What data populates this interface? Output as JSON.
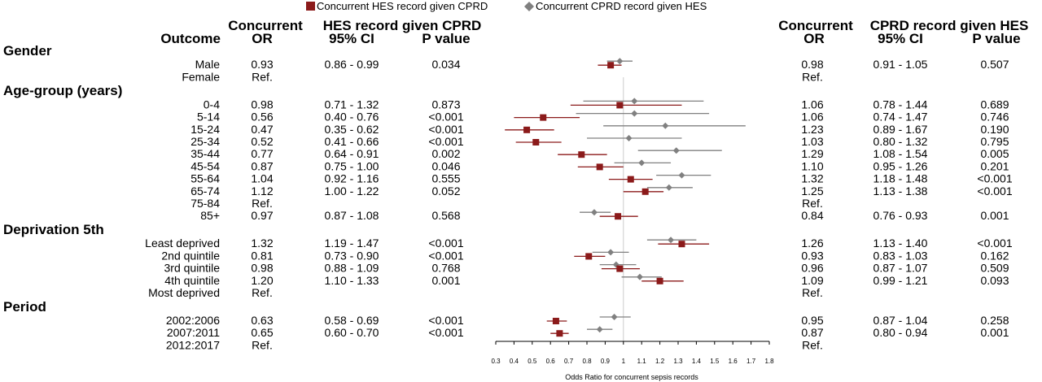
{
  "chart_data": {
    "type": "forest",
    "legend": [
      {
        "name": "Concurrent HES record given CPRD",
        "color": "#8b1a1a",
        "marker": "square"
      },
      {
        "name": "Concurrent CPRD record given HES",
        "color": "#808080",
        "marker": "diamond"
      }
    ],
    "header_left": {
      "group1": "Concurrent",
      "group2": "HES record given CPRD",
      "outcome": "Outcome",
      "or": "OR",
      "ci": "95% CI",
      "p": "P value"
    },
    "header_right": {
      "group1": "Concurrent",
      "group2": "CPRD record given HES",
      "or": "OR",
      "ci": "95% CI",
      "p": "P value"
    },
    "xaxis": {
      "label": "Odds Ratio for concurrent sepsis records",
      "min": 0.3,
      "max": 1.8,
      "reference_line": 1,
      "ticks": [
        0.3,
        0.4,
        0.5,
        0.6,
        0.7,
        0.8,
        0.9,
        1,
        1.1,
        1.2,
        1.3,
        1.4,
        1.5,
        1.6,
        1.7,
        1.8
      ],
      "tick_labels": [
        "0.3",
        "0.4",
        "0.5",
        "0.6",
        "0.7",
        "0.8",
        "0.9",
        "1",
        "1.1",
        "1.2",
        "1.3",
        "1.4",
        "1.5",
        "1.6",
        "1.7",
        "1.8"
      ]
    },
    "rows": [
      {
        "type": "section",
        "label": "Gender"
      },
      {
        "type": "row",
        "label": "Male",
        "hes": {
          "or": "0.93",
          "ci": "0.86 - 0.99",
          "p": "0.034",
          "est": 0.93,
          "lo": 0.86,
          "hi": 0.99
        },
        "cprd": {
          "or": "0.98",
          "ci": "0.91 - 1.05",
          "p": "0.507",
          "est": 0.98,
          "lo": 0.91,
          "hi": 1.05
        }
      },
      {
        "type": "row",
        "label": "Female",
        "hes": {
          "or": "Ref."
        },
        "cprd": {
          "or": "Ref."
        }
      },
      {
        "type": "section",
        "label": "Age-group (years)"
      },
      {
        "type": "row",
        "label": "0-4",
        "hes": {
          "or": "0.98",
          "ci": "0.71 - 1.32",
          "p": "0.873",
          "est": 0.98,
          "lo": 0.71,
          "hi": 1.32
        },
        "cprd": {
          "or": "1.06",
          "ci": "0.78 - 1.44",
          "p": "0.689",
          "est": 1.06,
          "lo": 0.78,
          "hi": 1.44
        }
      },
      {
        "type": "row",
        "label": "5-14",
        "hes": {
          "or": "0.56",
          "ci": "0.40 - 0.76",
          "p": "<0.001",
          "est": 0.56,
          "lo": 0.4,
          "hi": 0.76
        },
        "cprd": {
          "or": "1.06",
          "ci": "0.74 - 1.47",
          "p": "0.746",
          "est": 1.06,
          "lo": 0.74,
          "hi": 1.47
        }
      },
      {
        "type": "row",
        "label": "15-24",
        "hes": {
          "or": "0.47",
          "ci": "0.35 - 0.62",
          "p": "<0.001",
          "est": 0.47,
          "lo": 0.35,
          "hi": 0.62
        },
        "cprd": {
          "or": "1.23",
          "ci": "0.89 - 1.67",
          "p": "0.190",
          "est": 1.23,
          "lo": 0.89,
          "hi": 1.67
        }
      },
      {
        "type": "row",
        "label": "25-34",
        "hes": {
          "or": "0.52",
          "ci": "0.41 - 0.66",
          "p": "<0.001",
          "est": 0.52,
          "lo": 0.41,
          "hi": 0.66
        },
        "cprd": {
          "or": "1.03",
          "ci": "0.80 - 1.32",
          "p": "0.795",
          "est": 1.03,
          "lo": 0.8,
          "hi": 1.32
        }
      },
      {
        "type": "row",
        "label": "35-44",
        "hes": {
          "or": "0.77",
          "ci": "0.64 - 0.91",
          "p": "0.002",
          "est": 0.77,
          "lo": 0.64,
          "hi": 0.91
        },
        "cprd": {
          "or": "1.29",
          "ci": "1.08 - 1.54",
          "p": "0.005",
          "est": 1.29,
          "lo": 1.08,
          "hi": 1.54
        }
      },
      {
        "type": "row",
        "label": "45-54",
        "hes": {
          "or": "0.87",
          "ci": "0.75 - 1.00",
          "p": "0.046",
          "est": 0.87,
          "lo": 0.75,
          "hi": 1.0
        },
        "cprd": {
          "or": "1.10",
          "ci": "0.95 - 1.26",
          "p": "0.201",
          "est": 1.1,
          "lo": 0.95,
          "hi": 1.26
        }
      },
      {
        "type": "row",
        "label": "55-64",
        "hes": {
          "or": "1.04",
          "ci": "0.92 - 1.16",
          "p": "0.555",
          "est": 1.04,
          "lo": 0.92,
          "hi": 1.16
        },
        "cprd": {
          "or": "1.32",
          "ci": "1.18 - 1.48",
          "p": "<0.001",
          "est": 1.32,
          "lo": 1.18,
          "hi": 1.48
        }
      },
      {
        "type": "row",
        "label": "65-74",
        "hes": {
          "or": "1.12",
          "ci": "1.00 - 1.22",
          "p": "0.052",
          "est": 1.12,
          "lo": 1.0,
          "hi": 1.22
        },
        "cprd": {
          "or": "1.25",
          "ci": "1.13 - 1.38",
          "p": "<0.001",
          "est": 1.25,
          "lo": 1.13,
          "hi": 1.38
        }
      },
      {
        "type": "row",
        "label": "75-84",
        "hes": {
          "or": "Ref."
        },
        "cprd": {
          "or": "Ref."
        }
      },
      {
        "type": "row",
        "label": "85+",
        "hes": {
          "or": "0.97",
          "ci": "0.87 - 1.08",
          "p": "0.568",
          "est": 0.97,
          "lo": 0.87,
          "hi": 1.08
        },
        "cprd": {
          "or": "0.84",
          "ci": "0.76 - 0.93",
          "p": "0.001",
          "est": 0.84,
          "lo": 0.76,
          "hi": 0.93
        }
      },
      {
        "type": "section",
        "label": "Deprivation 5th"
      },
      {
        "type": "row",
        "label": "Least deprived",
        "hes": {
          "or": "1.32",
          "ci": "1.19 - 1.47",
          "p": "<0.001",
          "est": 1.32,
          "lo": 1.19,
          "hi": 1.47
        },
        "cprd": {
          "or": "1.26",
          "ci": "1.13 - 1.40",
          "p": "<0.001",
          "est": 1.26,
          "lo": 1.13,
          "hi": 1.4
        }
      },
      {
        "type": "row",
        "label": "2nd quintile",
        "hes": {
          "or": "0.81",
          "ci": "0.73 - 0.90",
          "p": "<0.001",
          "est": 0.81,
          "lo": 0.73,
          "hi": 0.9
        },
        "cprd": {
          "or": "0.93",
          "ci": "0.83 - 1.03",
          "p": "0.162",
          "est": 0.93,
          "lo": 0.83,
          "hi": 1.03
        }
      },
      {
        "type": "row",
        "label": "3rd quintile",
        "hes": {
          "or": "0.98",
          "ci": "0.88 - 1.09",
          "p": "0.768",
          "est": 0.98,
          "lo": 0.88,
          "hi": 1.09
        },
        "cprd": {
          "or": "0.96",
          "ci": "0.87 - 1.07",
          "p": "0.509",
          "est": 0.96,
          "lo": 0.87,
          "hi": 1.07
        }
      },
      {
        "type": "row",
        "label": "4th quintile",
        "hes": {
          "or": "1.20",
          "ci": "1.10 - 1.33",
          "p": "0.001",
          "est": 1.2,
          "lo": 1.1,
          "hi": 1.33
        },
        "cprd": {
          "or": "1.09",
          "ci": "0.99 - 1.21",
          "p": "0.093",
          "est": 1.09,
          "lo": 0.99,
          "hi": 1.21
        }
      },
      {
        "type": "row",
        "label": "Most deprived",
        "hes": {
          "or": "Ref."
        },
        "cprd": {
          "or": "Ref."
        }
      },
      {
        "type": "section",
        "label": "Period"
      },
      {
        "type": "row",
        "label": "2002:2006",
        "hes": {
          "or": "0.63",
          "ci": "0.58 - 0.69",
          "p": "<0.001",
          "est": 0.63,
          "lo": 0.58,
          "hi": 0.69
        },
        "cprd": {
          "or": "0.95",
          "ci": "0.87 - 1.04",
          "p": "0.258",
          "est": 0.95,
          "lo": 0.87,
          "hi": 1.04
        }
      },
      {
        "type": "row",
        "label": "2007:2011",
        "hes": {
          "or": "0.65",
          "ci": "0.60 - 0.70",
          "p": "<0.001",
          "est": 0.65,
          "lo": 0.6,
          "hi": 0.7
        },
        "cprd": {
          "or": "0.87",
          "ci": "0.80 - 0.94",
          "p": "0.001",
          "est": 0.87,
          "lo": 0.8,
          "hi": 0.94
        }
      },
      {
        "type": "row",
        "label": "2012:2017",
        "hes": {
          "or": "Ref."
        },
        "cprd": {
          "or": "Ref."
        }
      }
    ]
  }
}
